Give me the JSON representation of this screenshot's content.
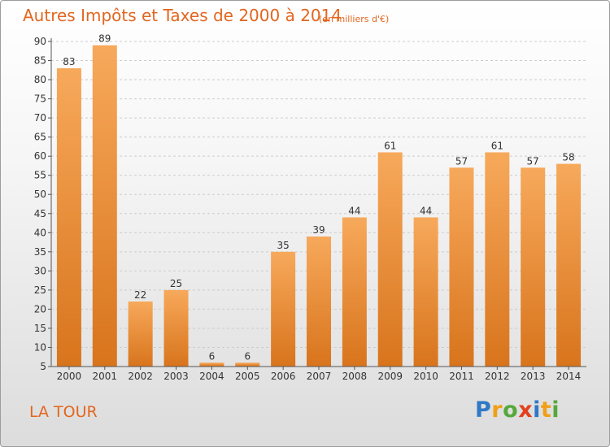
{
  "header": {
    "title": "Autres Impôts et Taxes de 2000 à 2014",
    "unit": "(en milliers d'€)"
  },
  "footer": {
    "commune": "LA TOUR",
    "logo_text": "Proxiti",
    "logo_letters": [
      {
        "ch": "P",
        "color": "#2f79c6"
      },
      {
        "ch": "r",
        "color": "#f0a018"
      },
      {
        "ch": "o",
        "color": "#56a83d"
      },
      {
        "ch": "x",
        "color": "#e2401e"
      },
      {
        "ch": "i",
        "color": "#2f79c6"
      },
      {
        "ch": "t",
        "color": "#f0a018"
      },
      {
        "ch": "i",
        "color": "#56a83d"
      }
    ]
  },
  "colors": {
    "bar_top": "#f7a95b",
    "bar_bottom": "#d8741c",
    "accent": "#e2661f",
    "grid": "#cccccc"
  },
  "chart_data": {
    "type": "bar",
    "title": "Autres Impôts et Taxes de 2000 à 2014",
    "subtitle": "(en milliers d'€)",
    "xlabel": "",
    "ylabel": "",
    "categories": [
      "2000",
      "2001",
      "2002",
      "2003",
      "2004",
      "2005",
      "2006",
      "2007",
      "2008",
      "2009",
      "2010",
      "2011",
      "2012",
      "2013",
      "2014"
    ],
    "values": [
      83,
      89,
      22,
      25,
      6,
      6,
      35,
      39,
      44,
      61,
      44,
      57,
      61,
      57,
      58
    ],
    "ylim": [
      5,
      90
    ],
    "yticks": [
      5,
      10,
      15,
      20,
      25,
      30,
      35,
      40,
      45,
      50,
      55,
      60,
      65,
      70,
      75,
      80,
      85,
      90
    ],
    "grid": "horizontal dashed",
    "data_labels": true,
    "legend": "none"
  }
}
